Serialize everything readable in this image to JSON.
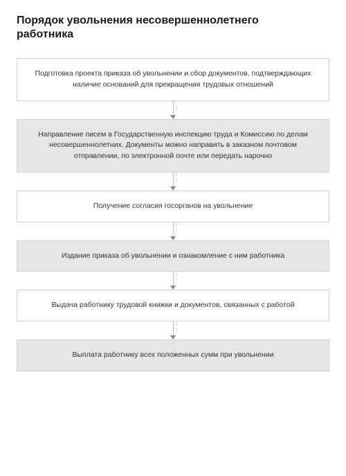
{
  "title": "Порядок увольнения несовершеннолетнего работника",
  "flowchart": {
    "type": "flowchart",
    "direction": "vertical",
    "background_color": "#ffffff",
    "border_color": "#d0d0d0",
    "connector_color": "#888888",
    "connector_style": "dotted",
    "box_font_size_pt": 10.5,
    "title_font_size_pt": 16,
    "title_font_weight": 700,
    "text_color": "#333333",
    "alt_bg_colors": {
      "white": "#ffffff",
      "gray": "#e6e6e6"
    },
    "steps": [
      {
        "bg": "white",
        "text": "Подготовка проекта приказа об увольнении и сбор документов, подтверждающих наличие оснований для прекращения трудовых отношений"
      },
      {
        "bg": "gray",
        "text": "Направление писем в Государственную инспекцию труда и Комиссию по делам несовершеннолетних. Документы можно направить в заказном почтовом отправлении, по электронной почте или передать нарочно"
      },
      {
        "bg": "white",
        "text": "Получение согласия госорганов на увольнение"
      },
      {
        "bg": "gray",
        "text": "Издание приказа об увольнении и ознакомление с ним работника"
      },
      {
        "bg": "white",
        "text": "Выдача работнику трудовой книжки и документов, связанных с работой"
      },
      {
        "bg": "gray",
        "text": "Выплата работнику всех положенных сумм при увольнении"
      }
    ]
  }
}
